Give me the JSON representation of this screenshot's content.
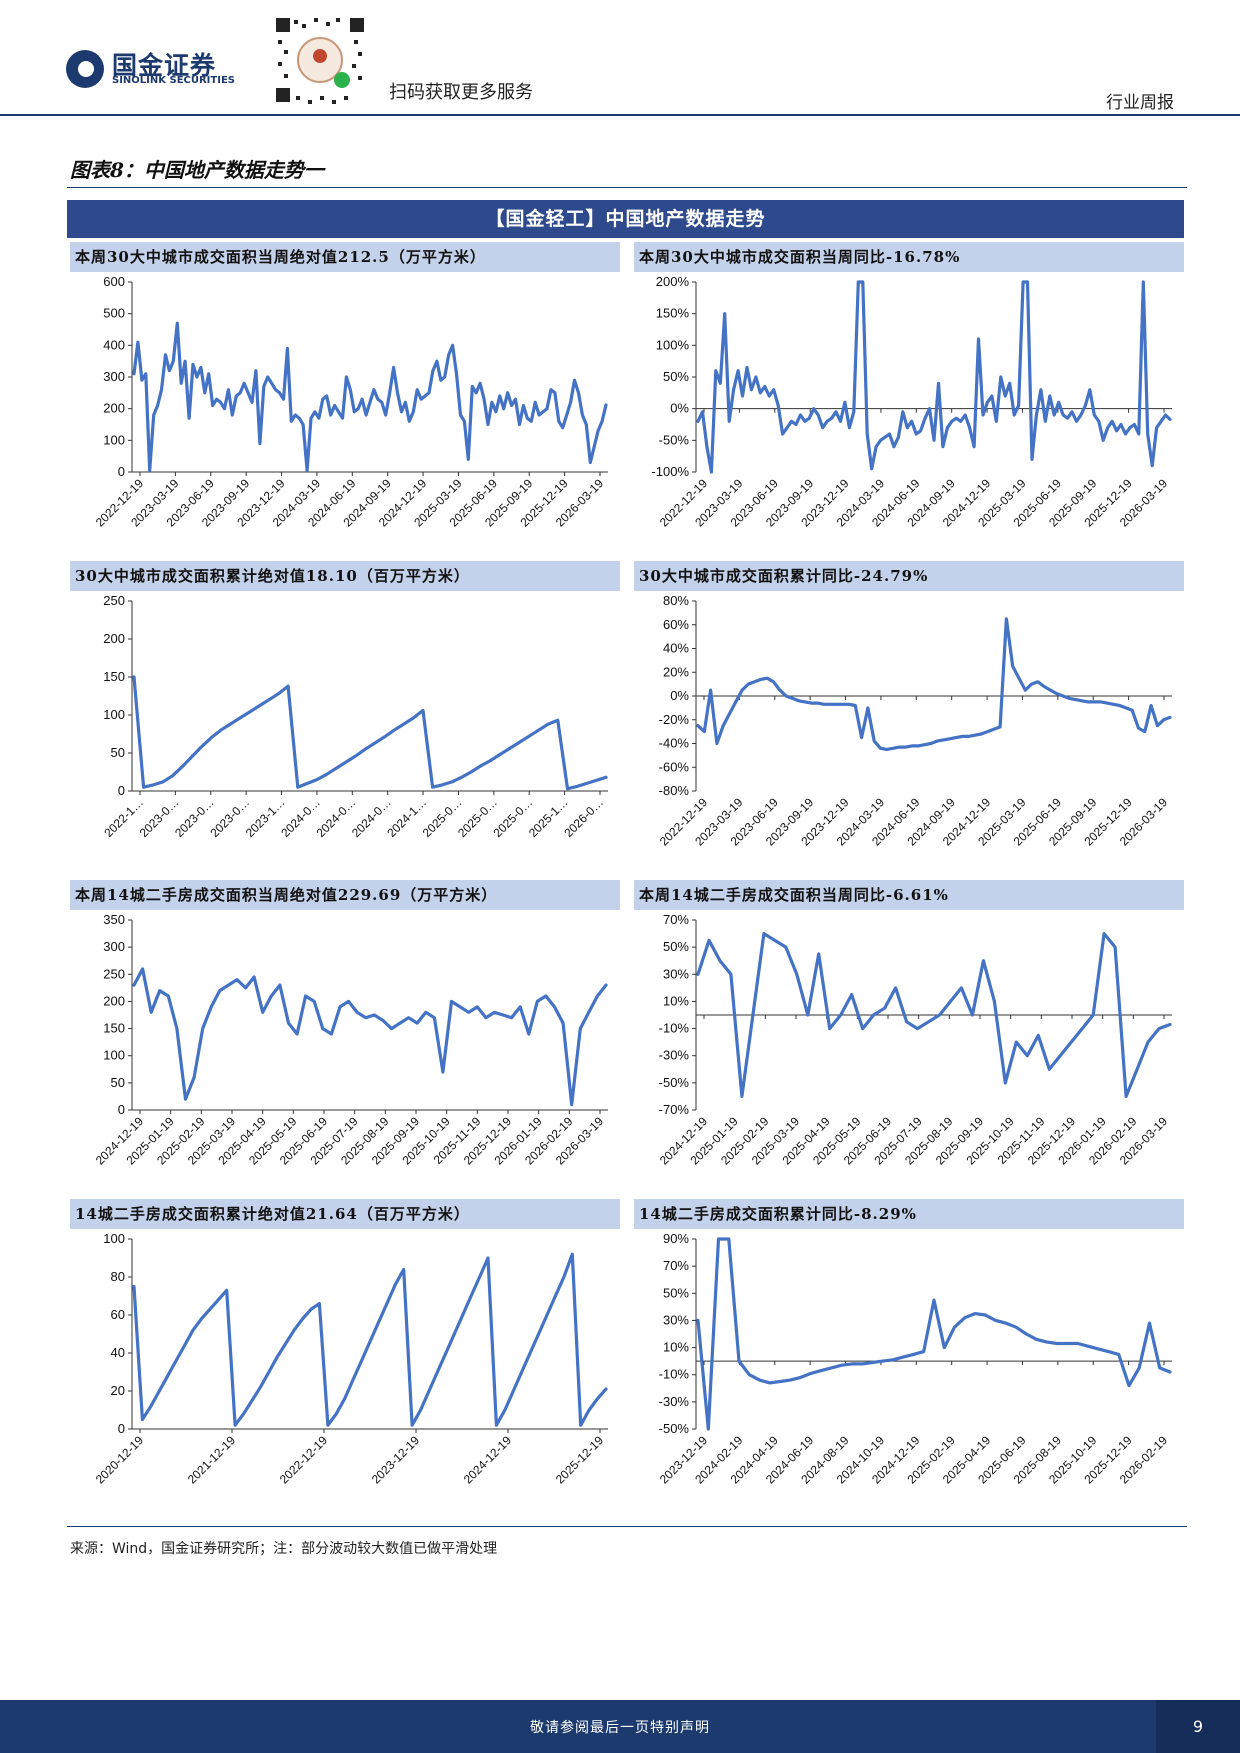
{
  "header": {
    "brand_cn": "国金证券",
    "brand_en": "SINOLINK SECURITIES",
    "scan_text": "扫码获取更多服务",
    "report_type": "行业周报"
  },
  "figure": {
    "title": "图表8：中国地产数据走势一",
    "banner": "【国金轻工】中国地产数据走势"
  },
  "source": "来源：Wind，国金证券研究所；注：部分波动较大数值已做平滑处理",
  "footer": {
    "disclaimer": "敬请参阅最后一页特别声明",
    "page": "9"
  },
  "colors": {
    "line": "#4472C4",
    "banner": "#2e4a8c",
    "title_bg": "#c3d1ea"
  },
  "charts": [
    {
      "id": "c1",
      "title": "本周30大中城市成交面积当周绝对值212.5（万平方米）",
      "chart_data": {
        "type": "line",
        "ymin": 0,
        "ymax": 600,
        "yticks": [
          0,
          100,
          200,
          300,
          400,
          500,
          600
        ],
        "yfmt": "",
        "xlabels": [
          "2022-12-19",
          "2023-03-19",
          "2023-06-19",
          "2023-09-19",
          "2023-12-19",
          "2024-03-19",
          "2024-06-19",
          "2024-09-19",
          "2024-12-19",
          "2025-03-19",
          "2025-06-19",
          "2025-09-19",
          "2025-12-19",
          "2026-03-19"
        ],
        "values": [
          310,
          410,
          290,
          310,
          5,
          180,
          210,
          260,
          370,
          320,
          350,
          470,
          280,
          350,
          170,
          340,
          300,
          330,
          250,
          310,
          210,
          230,
          220,
          200,
          260,
          180,
          240,
          250,
          280,
          250,
          220,
          320,
          90,
          270,
          300,
          280,
          260,
          250,
          230,
          390,
          160,
          180,
          170,
          150,
          5,
          170,
          190,
          170,
          230,
          240,
          180,
          210,
          190,
          170,
          300,
          260,
          190,
          200,
          230,
          180,
          220,
          260,
          230,
          220,
          180,
          250,
          330,
          250,
          190,
          220,
          160,
          190,
          260,
          230,
          240,
          250,
          320,
          350,
          290,
          300,
          370,
          400,
          310,
          180,
          160,
          40,
          270,
          250,
          280,
          230,
          150,
          220,
          190,
          240,
          200,
          250,
          210,
          230,
          150,
          210,
          170,
          160,
          220,
          180,
          190,
          200,
          260,
          250,
          160,
          140,
          180,
          220,
          290,
          250,
          180,
          150,
          30,
          80,
          130,
          160,
          212
        ]
      }
    },
    {
      "id": "c2",
      "title": "本周30大中城市成交面积当周同比-16.78%",
      "chart_data": {
        "type": "line",
        "ymin": -100,
        "ymax": 200,
        "yticks": [
          -100,
          -50,
          0,
          50,
          100,
          150,
          200
        ],
        "yfmt": "pct",
        "xlabels": [
          "2022-12-19",
          "2023-03-19",
          "2023-06-19",
          "2023-09-19",
          "2023-12-19",
          "2024-03-19",
          "2024-06-19",
          "2024-09-19",
          "2024-12-19",
          "2025-03-19",
          "2025-06-19",
          "2025-09-19",
          "2025-12-19",
          "2026-03-19"
        ],
        "values": [
          -20,
          -5,
          -60,
          -100,
          60,
          40,
          150,
          -20,
          30,
          60,
          20,
          65,
          30,
          50,
          25,
          35,
          20,
          30,
          5,
          -40,
          -30,
          -20,
          -25,
          -10,
          -20,
          -15,
          0,
          -10,
          -30,
          -20,
          -15,
          -5,
          -20,
          10,
          -30,
          -5,
          200,
          200,
          -40,
          -95,
          -60,
          -50,
          -45,
          -40,
          -60,
          -45,
          -5,
          -30,
          -20,
          -40,
          -35,
          -15,
          0,
          -50,
          40,
          -60,
          -30,
          -20,
          -15,
          -20,
          -10,
          -30,
          -60,
          110,
          -10,
          10,
          20,
          -20,
          50,
          20,
          40,
          -10,
          5,
          200,
          200,
          -80,
          -10,
          30,
          -20,
          20,
          -10,
          10,
          -10,
          -15,
          -5,
          -20,
          -10,
          5,
          30,
          -10,
          -20,
          -50,
          -30,
          -20,
          -35,
          -25,
          -40,
          -30,
          -25,
          -40,
          200,
          -40,
          -90,
          -30,
          -20,
          -10,
          -17
        ]
      }
    },
    {
      "id": "c3",
      "title": "30大中城市成交面积累计绝对值18.10（百万平方米）",
      "chart_data": {
        "type": "line",
        "ymin": 0,
        "ymax": 250,
        "yticks": [
          0,
          50,
          100,
          150,
          200,
          250
        ],
        "yfmt": "",
        "xlabels": [
          "2022-1…",
          "2023-0…",
          "2023-0…",
          "2023-0…",
          "2023-1…",
          "2024-0…",
          "2024-0…",
          "2024-0…",
          "2024-1…",
          "2025-0…",
          "2025-0…",
          "2025-0…",
          "2025-1…",
          "2026-0…"
        ],
        "values": [
          150,
          5,
          8,
          12,
          20,
          32,
          45,
          58,
          70,
          80,
          88,
          96,
          104,
          112,
          120,
          128,
          138,
          5,
          10,
          15,
          22,
          30,
          38,
          46,
          55,
          63,
          71,
          80,
          88,
          96,
          106,
          5,
          8,
          12,
          18,
          25,
          33,
          40,
          48,
          56,
          64,
          72,
          80,
          88,
          93,
          3,
          6,
          10,
          14,
          18
        ]
      }
    },
    {
      "id": "c4",
      "title": "30大中城市成交面积累计同比-24.79%",
      "chart_data": {
        "type": "line",
        "ymin": -80,
        "ymax": 80,
        "yticks": [
          -80,
          -60,
          -40,
          -20,
          0,
          20,
          40,
          60,
          80
        ],
        "yfmt": "pct",
        "xlabels": [
          "2022-12-19",
          "2023-03-19",
          "2023-06-19",
          "2023-09-19",
          "2023-12-19",
          "2024-03-19",
          "2024-06-19",
          "2024-09-19",
          "2024-12-19",
          "2025-03-19",
          "2025-06-19",
          "2025-09-19",
          "2025-12-19",
          "2026-03-19"
        ],
        "values": [
          -25,
          -30,
          5,
          -40,
          -25,
          -15,
          -5,
          5,
          10,
          12,
          14,
          15,
          12,
          5,
          0,
          -2,
          -4,
          -5,
          -6,
          -6,
          -7,
          -7,
          -7,
          -7,
          -7,
          -8,
          -35,
          -10,
          -38,
          -44,
          -45,
          -44,
          -43,
          -43,
          -42,
          -42,
          -41,
          -40,
          -38,
          -37,
          -36,
          -35,
          -34,
          -34,
          -33,
          -32,
          -30,
          -28,
          -26,
          65,
          25,
          15,
          5,
          10,
          12,
          8,
          5,
          2,
          0,
          -2,
          -3,
          -4,
          -5,
          -5,
          -5,
          -6,
          -7,
          -8,
          -10,
          -12,
          -27,
          -30,
          -8,
          -25,
          -20,
          -18
        ]
      }
    },
    {
      "id": "c5",
      "title": "本周14城二手房成交面积当周绝对值229.69（万平方米）",
      "chart_data": {
        "type": "line",
        "ymin": 0,
        "ymax": 350,
        "yticks": [
          0,
          50,
          100,
          150,
          200,
          250,
          300,
          350
        ],
        "yfmt": "",
        "xlabels": [
          "2024-12-19",
          "2025-01-19",
          "2025-02-19",
          "2025-03-19",
          "2025-04-19",
          "2025-05-19",
          "2025-06-19",
          "2025-07-19",
          "2025-08-19",
          "2025-09-19",
          "2025-10-19",
          "2025-11-19",
          "2025-12-19",
          "2026-01-19",
          "2026-02-19",
          "2026-03-19"
        ],
        "values": [
          230,
          260,
          180,
          220,
          210,
          150,
          20,
          60,
          150,
          190,
          220,
          230,
          240,
          225,
          245,
          180,
          210,
          230,
          160,
          140,
          210,
          200,
          150,
          140,
          190,
          200,
          180,
          170,
          175,
          165,
          150,
          160,
          170,
          160,
          180,
          170,
          70,
          200,
          190,
          180,
          190,
          170,
          180,
          175,
          170,
          190,
          140,
          200,
          210,
          190,
          160,
          10,
          150,
          180,
          210,
          230
        ]
      }
    },
    {
      "id": "c6",
      "title": "本周14城二手房成交面积当周同比-6.61%",
      "chart_data": {
        "type": "line",
        "ymin": -70,
        "ymax": 70,
        "yticks": [
          -70,
          -50,
          -30,
          -10,
          10,
          30,
          50,
          70
        ],
        "yfmt": "pct",
        "xlabels": [
          "2024-12-19",
          "2025-01-19",
          "2025-02-19",
          "2025-03-19",
          "2025-04-19",
          "2025-05-19",
          "2025-06-19",
          "2025-07-19",
          "2025-08-19",
          "2025-09-19",
          "2025-10-19",
          "2025-11-19",
          "2025-12-19",
          "2026-01-19",
          "2026-02-19",
          "2026-03-19"
        ],
        "values": [
          30,
          55,
          40,
          30,
          -60,
          0,
          60,
          55,
          50,
          30,
          0,
          45,
          -10,
          0,
          15,
          -10,
          0,
          5,
          20,
          -5,
          -10,
          -5,
          0,
          10,
          20,
          0,
          40,
          10,
          -50,
          -20,
          -30,
          -15,
          -40,
          -30,
          -20,
          -10,
          0,
          60,
          50,
          -60,
          -40,
          -20,
          -10,
          -7
        ]
      }
    },
    {
      "id": "c7",
      "title": "14城二手房成交面积累计绝对值21.64（百万平方米）",
      "chart_data": {
        "type": "line",
        "ymin": 0,
        "ymax": 100,
        "yticks": [
          0,
          20,
          40,
          60,
          80,
          100
        ],
        "yfmt": "",
        "xlabels": [
          "2020-12-19",
          "2021-12-19",
          "2022-12-19",
          "2023-12-19",
          "2024-12-19",
          "2025-12-19"
        ],
        "values": [
          75,
          5,
          12,
          20,
          28,
          36,
          44,
          52,
          58,
          63,
          68,
          73,
          2,
          8,
          15,
          22,
          30,
          38,
          45,
          52,
          58,
          63,
          66,
          2,
          8,
          16,
          26,
          36,
          46,
          56,
          66,
          76,
          84,
          2,
          10,
          20,
          30,
          40,
          50,
          60,
          70,
          80,
          90,
          2,
          10,
          20,
          30,
          40,
          50,
          60,
          70,
          80,
          92,
          2,
          10,
          16,
          21
        ]
      }
    },
    {
      "id": "c8",
      "title": "14城二手房成交面积累计同比-8.29%",
      "chart_data": {
        "type": "line",
        "ymin": -50,
        "ymax": 90,
        "yticks": [
          -50,
          -30,
          -10,
          10,
          30,
          50,
          70,
          90
        ],
        "yfmt": "pct",
        "xlabels": [
          "2023-12-19",
          "2024-02-19",
          "2024-04-19",
          "2024-06-19",
          "2024-08-19",
          "2024-10-19",
          "2024-12-19",
          "2025-02-19",
          "2025-04-19",
          "2025-06-19",
          "2025-08-19",
          "2025-10-19",
          "2025-12-19",
          "2026-02-19"
        ],
        "values": [
          30,
          -50,
          90,
          90,
          0,
          -10,
          -14,
          -16,
          -15,
          -14,
          -12,
          -9,
          -7,
          -5,
          -3,
          -2,
          -2,
          -1,
          0,
          1,
          3,
          5,
          7,
          45,
          10,
          25,
          32,
          35,
          34,
          30,
          28,
          25,
          20,
          16,
          14,
          13,
          13,
          13,
          11,
          9,
          7,
          5,
          -18,
          -5,
          28,
          -5,
          -8
        ]
      }
    }
  ]
}
